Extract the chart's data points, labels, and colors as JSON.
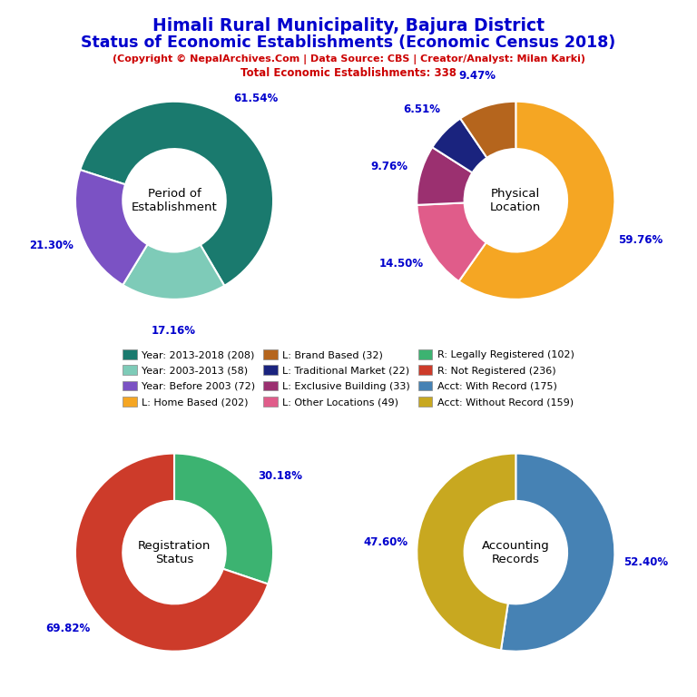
{
  "title_line1": "Himali Rural Municipality, Bajura District",
  "title_line2": "Status of Economic Establishments (Economic Census 2018)",
  "subtitle1": "(Copyright © NepalArchives.Com | Data Source: CBS | Creator/Analyst: Milan Karki)",
  "subtitle2": "Total Economic Establishments: 338",
  "title_color": "#0000CD",
  "subtitle_color": "#CC0000",
  "chart1": {
    "title": "Period of\nEstablishment",
    "values": [
      61.54,
      17.16,
      21.3
    ],
    "colors": [
      "#1a7a6e",
      "#7ecbb8",
      "#7b52c4"
    ],
    "labels_pct": [
      "61.54%",
      "17.16%",
      "21.30%"
    ],
    "startangle": 162
  },
  "chart2": {
    "title": "Physical\nLocation",
    "values": [
      59.76,
      14.5,
      9.76,
      6.51,
      9.47
    ],
    "colors": [
      "#f5a623",
      "#e05c8a",
      "#9b3070",
      "#1a237e",
      "#b5651d"
    ],
    "labels_pct": [
      "59.76%",
      "14.50%",
      "9.76%",
      "6.51%",
      "9.47%"
    ],
    "startangle": 90
  },
  "chart3": {
    "title": "Registration\nStatus",
    "values": [
      30.18,
      69.82
    ],
    "colors": [
      "#3cb371",
      "#cd3b2a"
    ],
    "labels_pct": [
      "30.18%",
      "69.82%"
    ],
    "startangle": 90
  },
  "chart4": {
    "title": "Accounting\nRecords",
    "values": [
      52.4,
      47.6
    ],
    "colors": [
      "#4682b4",
      "#c8a820"
    ],
    "labels_pct": [
      "52.40%",
      "47.60%"
    ],
    "startangle": 90
  },
  "legend_data": [
    [
      "Year: 2013-2018 (208)",
      "#1a7a6e"
    ],
    [
      "Year: 2003-2013 (58)",
      "#7ecbb8"
    ],
    [
      "Year: Before 2003 (72)",
      "#7b52c4"
    ],
    [
      "L: Home Based (202)",
      "#f5a623"
    ],
    [
      "L: Brand Based (32)",
      "#b5651d"
    ],
    [
      "L: Traditional Market (22)",
      "#1a237e"
    ],
    [
      "L: Exclusive Building (33)",
      "#9b3070"
    ],
    [
      "L: Other Locations (49)",
      "#e05c8a"
    ],
    [
      "R: Legally Registered (102)",
      "#3cb371"
    ],
    [
      "R: Not Registered (236)",
      "#cd3b2a"
    ],
    [
      "Acct: With Record (175)",
      "#4682b4"
    ],
    [
      "Acct: Without Record (159)",
      "#c8a820"
    ]
  ],
  "bg_color": "#ffffff",
  "label_color": "#0000CD",
  "center_text_color": "#000000"
}
